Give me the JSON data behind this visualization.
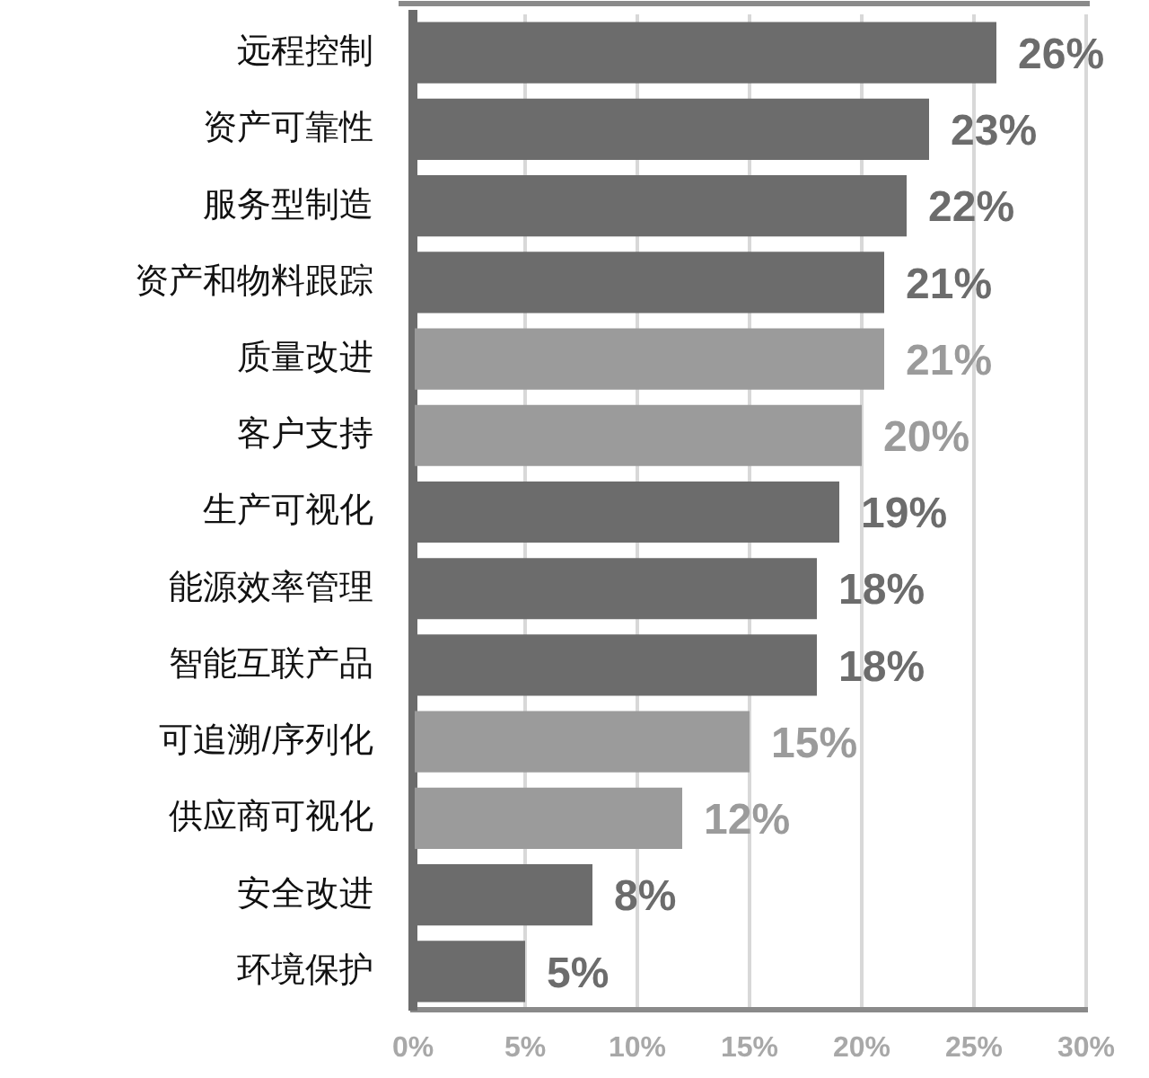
{
  "chart_data": {
    "type": "bar",
    "orientation": "horizontal",
    "categories": [
      "远程控制",
      "资产可靠性",
      "服务型制造",
      "资产和物料跟踪",
      "质量改进",
      "客户支持",
      "生产可视化",
      "能源效率管理",
      "智能互联产品",
      "可追溯/序列化",
      "供应商可视化",
      "安全改进",
      "环境保护"
    ],
    "values": [
      26,
      23,
      22,
      21,
      21,
      20,
      19,
      18,
      18,
      15,
      12,
      8,
      5
    ],
    "colors": [
      "#6c6c6c",
      "#6c6c6c",
      "#6c6c6c",
      "#6c6c6c",
      "#9b9b9b",
      "#9b9b9b",
      "#6c6c6c",
      "#6c6c6c",
      "#6c6c6c",
      "#9b9b9b",
      "#9b9b9b",
      "#6c6c6c",
      "#6c6c6c"
    ],
    "value_labels": [
      "26%",
      "23%",
      "22%",
      "21%",
      "21%",
      "20%",
      "19%",
      "18%",
      "18%",
      "15%",
      "12%",
      "8%",
      "5%"
    ],
    "xlim": [
      0,
      30
    ],
    "xticks": [
      {
        "value": 0,
        "label": "0%"
      },
      {
        "value": 5,
        "label": "5%"
      },
      {
        "value": 10,
        "label": "10%"
      },
      {
        "value": 15,
        "label": "15%"
      },
      {
        "value": 20,
        "label": "20%"
      },
      {
        "value": 25,
        "label": "25%"
      },
      {
        "value": 30,
        "label": "30%"
      }
    ],
    "grid": "x"
  }
}
